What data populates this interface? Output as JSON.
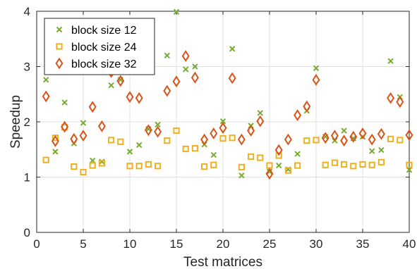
{
  "chart_data": {
    "type": "scatter",
    "title": "",
    "xlabel": "Test matrices",
    "ylabel": "Speedup",
    "xlim": [
      0,
      40
    ],
    "ylim": [
      0,
      4
    ],
    "xticks": [
      0,
      5,
      10,
      15,
      20,
      25,
      30,
      35,
      40
    ],
    "yticks": [
      0,
      1,
      2,
      3,
      4
    ],
    "grid": true,
    "legend_position": "top-left",
    "series": [
      {
        "name": "block size 12",
        "marker": "x",
        "color": "#77AC30",
        "x": [
          1,
          2,
          3,
          4,
          5,
          6,
          7,
          8,
          9,
          10,
          11,
          12,
          13,
          14,
          15,
          16,
          17,
          18,
          19,
          20,
          21,
          22,
          23,
          24,
          25,
          26,
          27,
          28,
          29,
          30,
          31,
          32,
          33,
          34,
          35,
          36,
          37,
          38,
          39,
          40
        ],
        "y": [
          2.76,
          1.46,
          2.35,
          1.61,
          1.98,
          1.3,
          1.28,
          2.66,
          2.76,
          1.46,
          1.58,
          1.87,
          1.95,
          3.2,
          3.99,
          2.95,
          3.0,
          1.59,
          1.4,
          2.01,
          3.32,
          1.03,
          1.93,
          2.16,
          1.1,
          1.21,
          1.14,
          1.42,
          2.2,
          2.97,
          1.73,
          1.66,
          1.84,
          1.7,
          1.73,
          1.47,
          1.49,
          3.1,
          2.45,
          1.13
        ]
      },
      {
        "name": "block size 24",
        "marker": "square",
        "color": "#EDB120",
        "x": [
          1,
          2,
          3,
          4,
          5,
          6,
          7,
          8,
          9,
          10,
          11,
          12,
          13,
          14,
          15,
          16,
          17,
          18,
          19,
          20,
          21,
          22,
          23,
          24,
          25,
          26,
          27,
          28,
          29,
          30,
          31,
          32,
          33,
          34,
          35,
          36,
          37,
          38,
          39,
          40
        ],
        "y": [
          1.31,
          1.71,
          1.9,
          1.19,
          1.09,
          1.21,
          1.25,
          1.67,
          1.64,
          1.2,
          1.2,
          1.23,
          1.2,
          1.66,
          1.84,
          1.51,
          1.52,
          1.19,
          1.22,
          1.7,
          1.71,
          1.18,
          1.37,
          1.35,
          1.21,
          1.39,
          1.12,
          1.21,
          1.66,
          1.67,
          1.22,
          1.26,
          1.23,
          1.2,
          1.23,
          1.22,
          1.27,
          1.69,
          1.67,
          1.22
        ]
      },
      {
        "name": "block size 32",
        "marker": "diamond",
        "color": "#D95319",
        "x": [
          1,
          2,
          3,
          4,
          5,
          6,
          7,
          8,
          9,
          10,
          11,
          12,
          13,
          14,
          15,
          16,
          17,
          18,
          19,
          20,
          21,
          22,
          23,
          24,
          25,
          26,
          27,
          28,
          29,
          30,
          31,
          32,
          33,
          34,
          35,
          36,
          37,
          38,
          39,
          40
        ],
        "y": [
          2.46,
          1.65,
          1.91,
          1.69,
          1.75,
          2.27,
          1.92,
          2.9,
          2.74,
          2.45,
          2.43,
          1.85,
          1.82,
          2.56,
          2.73,
          3.19,
          2.8,
          1.68,
          1.79,
          1.89,
          2.79,
          1.68,
          1.84,
          2.01,
          1.06,
          1.49,
          1.68,
          2.12,
          2.28,
          2.76,
          1.71,
          1.75,
          1.66,
          1.73,
          1.79,
          1.68,
          1.78,
          2.43,
          2.36,
          1.76
        ]
      }
    ]
  }
}
